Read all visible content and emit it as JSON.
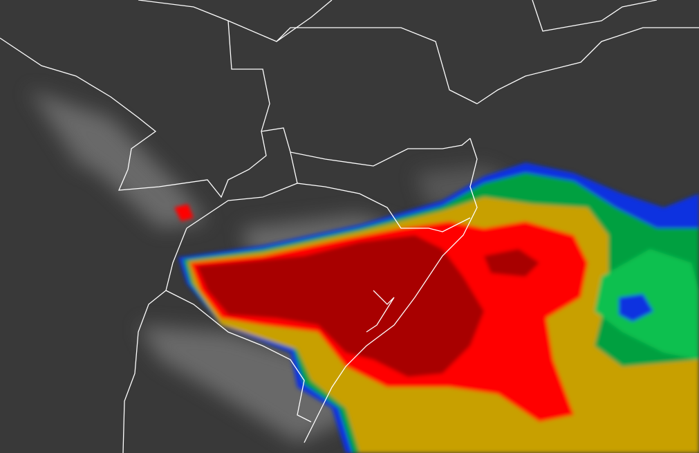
{
  "image": {
    "kind": "enhanced infrared satellite imagery with political borders",
    "colors": {
      "background": "#3a3a3a",
      "cloud_light": "#8a8a8a",
      "borders": "#ffffff",
      "level_blue": "#1030e0",
      "level_green": "#00a040",
      "level_lightgreen": "#10c050",
      "level_gold": "#c8a000",
      "level_red": "#ff0000",
      "level_darkred": "#a80000"
    }
  }
}
